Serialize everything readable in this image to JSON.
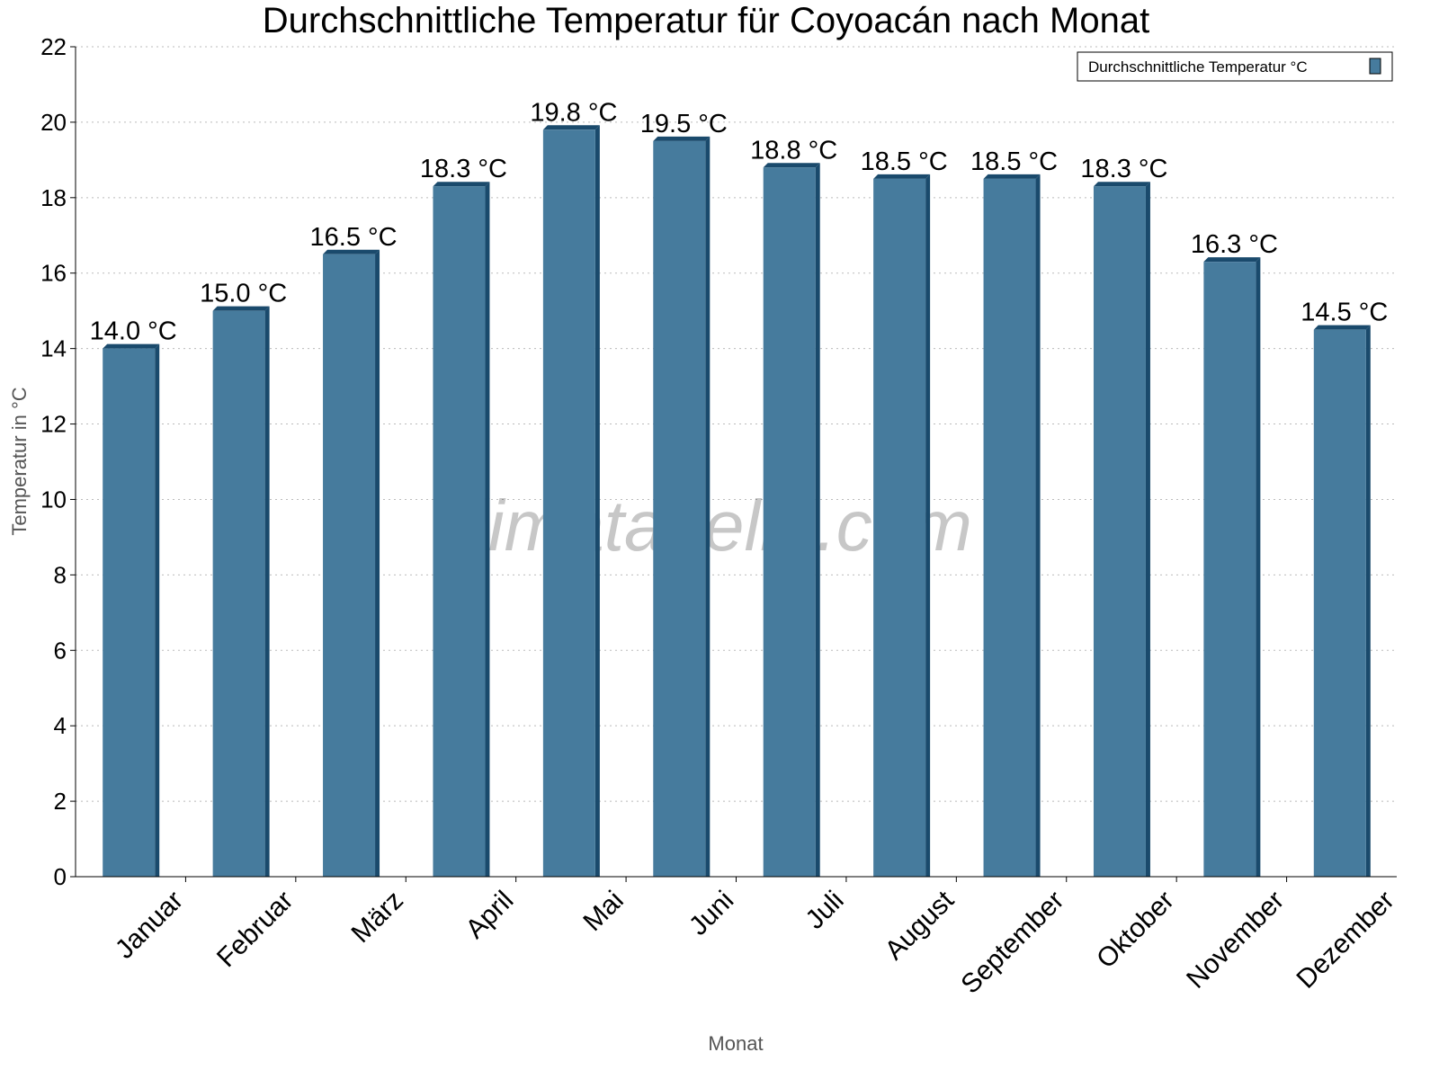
{
  "chart_data": {
    "type": "bar",
    "title": "Durchschnittliche Temperatur für Coyoacán nach Monat",
    "xlabel": "Monat",
    "ylabel": "Temperatur in °C",
    "categories": [
      "Januar",
      "Februar",
      "März",
      "April",
      "Mai",
      "Juni",
      "Juli",
      "August",
      "September",
      "Oktober",
      "November",
      "Dezember"
    ],
    "series": [
      {
        "name": "Durchschnittliche Temperatur °C",
        "values": [
          14.0,
          15.0,
          16.5,
          18.3,
          19.8,
          19.5,
          18.8,
          18.5,
          18.5,
          18.3,
          16.3,
          14.5
        ],
        "color": "#467b9d",
        "shade_color": "#1a4a6c"
      }
    ],
    "data_label_suffix": " °C",
    "ylim": [
      0,
      22
    ],
    "yticks": [
      0,
      2,
      4,
      6,
      8,
      10,
      12,
      14,
      16,
      18,
      20,
      22
    ],
    "grid": true,
    "legend": "top-right",
    "watermark": "klimatabelle.com"
  }
}
